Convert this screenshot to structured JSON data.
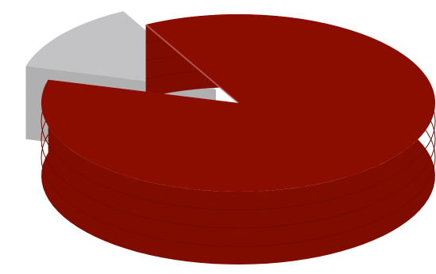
{
  "chart_data": {
    "type": "pie",
    "style": "3d-exploded",
    "slices": [
      {
        "value": 87,
        "color": "#8b0d00"
      },
      {
        "value": 13,
        "color": "#c3c3c5"
      }
    ],
    "legend": "none",
    "title": ""
  }
}
